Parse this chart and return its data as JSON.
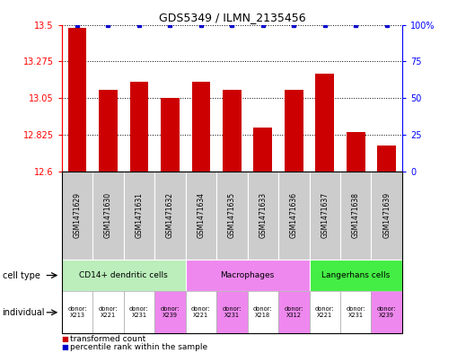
{
  "title": "GDS5349 / ILMN_2135456",
  "samples": [
    "GSM1471629",
    "GSM1471630",
    "GSM1471631",
    "GSM1471632",
    "GSM1471634",
    "GSM1471635",
    "GSM1471633",
    "GSM1471636",
    "GSM1471637",
    "GSM1471638",
    "GSM1471639"
  ],
  "bar_values": [
    13.48,
    13.1,
    13.15,
    13.05,
    13.15,
    13.1,
    12.87,
    13.1,
    13.2,
    12.84,
    12.76
  ],
  "percentile_values": [
    100,
    100,
    100,
    100,
    100,
    100,
    100,
    100,
    100,
    100,
    100
  ],
  "ylim_left": [
    12.6,
    13.5
  ],
  "ylim_right": [
    0,
    100
  ],
  "yticks_left": [
    12.6,
    12.825,
    13.05,
    13.275,
    13.5
  ],
  "yticks_right": [
    0,
    25,
    50,
    75,
    100
  ],
  "bar_color": "#cc0000",
  "dot_color": "#0000cc",
  "cell_groups": [
    {
      "label": "CD14+ dendritic cells",
      "start": 0,
      "end": 4,
      "color": "#bbeebb"
    },
    {
      "label": "Macrophages",
      "start": 4,
      "end": 8,
      "color": "#ee88ee"
    },
    {
      "label": "Langerhans cells",
      "start": 8,
      "end": 11,
      "color": "#44ee44"
    }
  ],
  "indiv_colors": [
    "#ffffff",
    "#ffffff",
    "#ffffff",
    "#ee88ee",
    "#ffffff",
    "#ee88ee",
    "#ffffff",
    "#ee88ee",
    "#ffffff",
    "#ffffff",
    "#ee88ee"
  ],
  "indiv_labels": [
    "donor:\nX213",
    "donor:\nX221",
    "donor:\nX231",
    "donor:\nX239",
    "donor:\nX221",
    "donor:\nX231",
    "donor:\nX218",
    "donor:\nX312",
    "donor:\nX221",
    "donor:\nX231",
    "donor:\nX239"
  ],
  "xlabel_bg": "#cccccc",
  "legend_red_label": "transformed count",
  "legend_blue_label": "percentile rank within the sample"
}
